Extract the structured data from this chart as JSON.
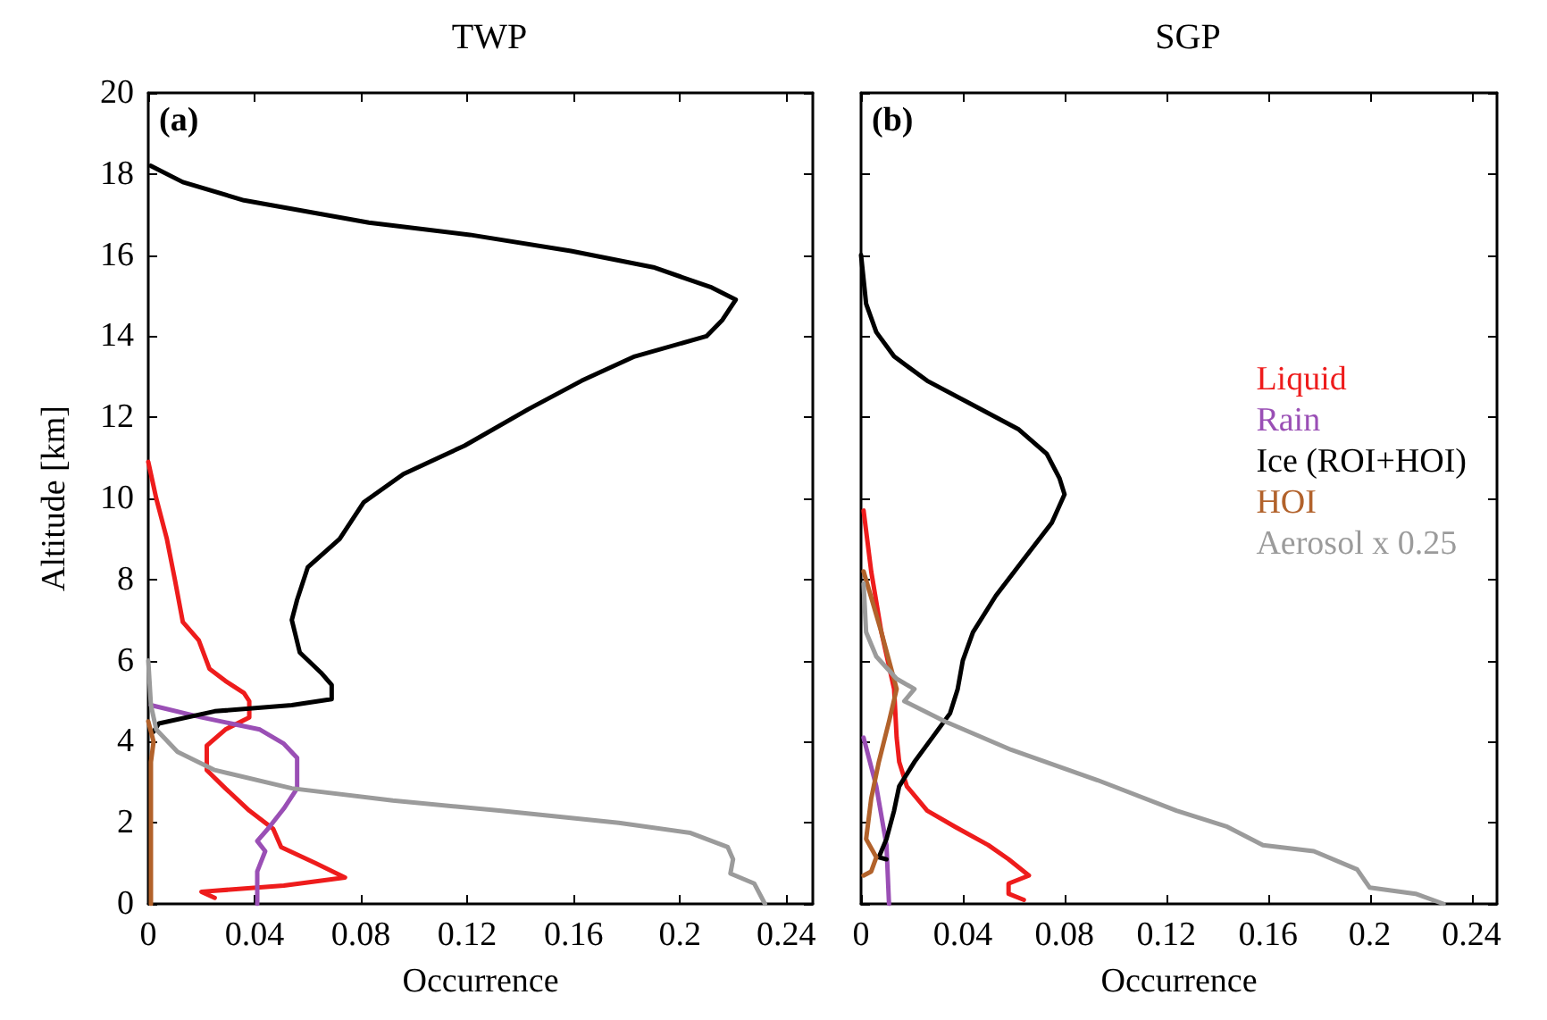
{
  "chart_data": [
    {
      "type": "line",
      "title": "TWP",
      "xlabel": "Occurrence",
      "ylabel": "Altitude [km]",
      "annotations": [
        "(a)"
      ],
      "xlim": [
        0,
        0.25
      ],
      "xticks": [
        0,
        0.04,
        0.08,
        0.12,
        0.16,
        0.2,
        0.24
      ],
      "ylim": [
        0,
        20
      ],
      "yticks": [
        0,
        2,
        4,
        6,
        8,
        10,
        12,
        14,
        16,
        18,
        20
      ],
      "grid": false,
      "legend": false,
      "marker": "none",
      "line_style": "solid",
      "series": [
        {
          "color": "#ee1c1c",
          "x": [
            0.0,
            0.003,
            0.007,
            0.01,
            0.013,
            0.019,
            0.023,
            0.029,
            0.036,
            0.038,
            0.038,
            0.029,
            0.022,
            0.022,
            0.029,
            0.038,
            0.047,
            0.05,
            0.063,
            0.074,
            0.051,
            0.02,
            0.025
          ],
          "values": [
            10.9,
            10.0,
            9.0,
            8.0,
            6.95,
            6.5,
            5.8,
            5.5,
            5.2,
            5.0,
            4.6,
            4.3,
            3.9,
            3.3,
            2.85,
            2.3,
            1.85,
            1.4,
            1.0,
            0.65,
            0.45,
            0.3,
            0.15
          ]
        },
        {
          "color": "#9a4fb5",
          "x": [
            0.001,
            0.02,
            0.042,
            0.051,
            0.056,
            0.056,
            0.051,
            0.045,
            0.041,
            0.044,
            0.041,
            0.041
          ],
          "values": [
            4.9,
            4.6,
            4.3,
            3.95,
            3.6,
            2.85,
            2.35,
            1.85,
            1.55,
            1.3,
            0.8,
            0
          ]
        },
        {
          "color": "#000000",
          "x": [
            0.001,
            0.013,
            0.036,
            0.083,
            0.121,
            0.159,
            0.19,
            0.212,
            0.221,
            0.216,
            0.21,
            0.183,
            0.163,
            0.143,
            0.119,
            0.096,
            0.081,
            0.072,
            0.06,
            0.056,
            0.054,
            0.057,
            0.065,
            0.069,
            0.069,
            0.054,
            0.025,
            0.004,
            0.002
          ],
          "values": [
            18.2,
            17.8,
            17.35,
            16.8,
            16.5,
            16.1,
            15.7,
            15.2,
            14.9,
            14.4,
            14.0,
            13.5,
            12.9,
            12.2,
            11.3,
            10.6,
            9.9,
            9.0,
            8.3,
            7.5,
            7.0,
            6.2,
            5.7,
            5.4,
            5.05,
            4.9,
            4.75,
            4.45,
            4.25
          ]
        },
        {
          "color": "#b2622b",
          "x": [
            0.0,
            0.002,
            0.001,
            0.001
          ],
          "values": [
            4.5,
            4.0,
            3.5,
            0
          ]
        },
        {
          "color": "#9b9b9b",
          "x": [
            0.0,
            0.001,
            0.003,
            0.011,
            0.025,
            0.054,
            0.092,
            0.132,
            0.177,
            0.204,
            0.218,
            0.22,
            0.219,
            0.228,
            0.232
          ],
          "values": [
            6.0,
            4.9,
            4.3,
            3.75,
            3.3,
            2.85,
            2.55,
            2.3,
            2.0,
            1.75,
            1.4,
            1.1,
            0.75,
            0.5,
            0
          ]
        }
      ]
    },
    {
      "type": "line",
      "title": "SGP",
      "xlabel": "Occurrence",
      "annotations": [
        "(b)"
      ],
      "xlim": [
        0,
        0.25
      ],
      "xticks": [
        0,
        0.04,
        0.08,
        0.12,
        0.16,
        0.2,
        0.24
      ],
      "ylim": [
        0,
        20
      ],
      "yticks": [
        0,
        2,
        4,
        6,
        8,
        10,
        12,
        14,
        16,
        18,
        20
      ],
      "tick_labels": "x",
      "grid": false,
      "legend": "right",
      "marker": "none",
      "line_style": "solid",
      "series": [
        {
          "name": "Liquid",
          "color": "#ee1c1c",
          "x": [
            0.001,
            0.004,
            0.008,
            0.013,
            0.014,
            0.015,
            0.018,
            0.026,
            0.037,
            0.05,
            0.058,
            0.066,
            0.058,
            0.058,
            0.064
          ],
          "values": [
            9.7,
            8.2,
            6.7,
            5.3,
            4.1,
            3.5,
            2.9,
            2.3,
            1.9,
            1.45,
            1.1,
            0.7,
            0.5,
            0.25,
            0.1
          ]
        },
        {
          "name": "Rain",
          "color": "#9a4fb5",
          "x": [
            0.001,
            0.006,
            0.01,
            0.011
          ],
          "values": [
            4.1,
            2.9,
            1.45,
            0
          ]
        },
        {
          "name": "Ice (ROI+HOI)",
          "color": "#000000",
          "x": [
            0.0,
            0.002,
            0.006,
            0.013,
            0.026,
            0.044,
            0.062,
            0.073,
            0.078,
            0.08,
            0.075,
            0.064,
            0.053,
            0.044,
            0.04,
            0.038,
            0.035,
            0.028,
            0.021,
            0.015,
            0.013,
            0.01,
            0.007,
            0.01
          ],
          "values": [
            16.0,
            14.8,
            14.1,
            13.5,
            12.9,
            12.3,
            11.7,
            11.1,
            10.5,
            10.1,
            9.4,
            8.5,
            7.6,
            6.7,
            6.0,
            5.3,
            4.7,
            4.1,
            3.5,
            2.9,
            2.3,
            1.6,
            1.15,
            1.1
          ]
        },
        {
          "name": "HOI",
          "color": "#b2622b",
          "x": [
            0.001,
            0.008,
            0.014,
            0.011,
            0.007,
            0.004,
            0.002,
            0.006,
            0.004,
            0.001
          ],
          "values": [
            8.2,
            6.7,
            5.3,
            4.5,
            3.5,
            2.6,
            1.6,
            1.15,
            0.8,
            0.7
          ]
        },
        {
          "name": "Aerosol x 0.25",
          "color": "#9b9b9b",
          "x": [
            0.001,
            0.002,
            0.006,
            0.014,
            0.021,
            0.017,
            0.033,
            0.059,
            0.093,
            0.124,
            0.144,
            0.158,
            0.178,
            0.195,
            0.2,
            0.218,
            0.229
          ],
          "values": [
            7.9,
            6.7,
            6.1,
            5.55,
            5.3,
            5.0,
            4.5,
            3.8,
            3.05,
            2.3,
            1.9,
            1.45,
            1.3,
            0.85,
            0.4,
            0.25,
            0
          ]
        }
      ]
    }
  ]
}
